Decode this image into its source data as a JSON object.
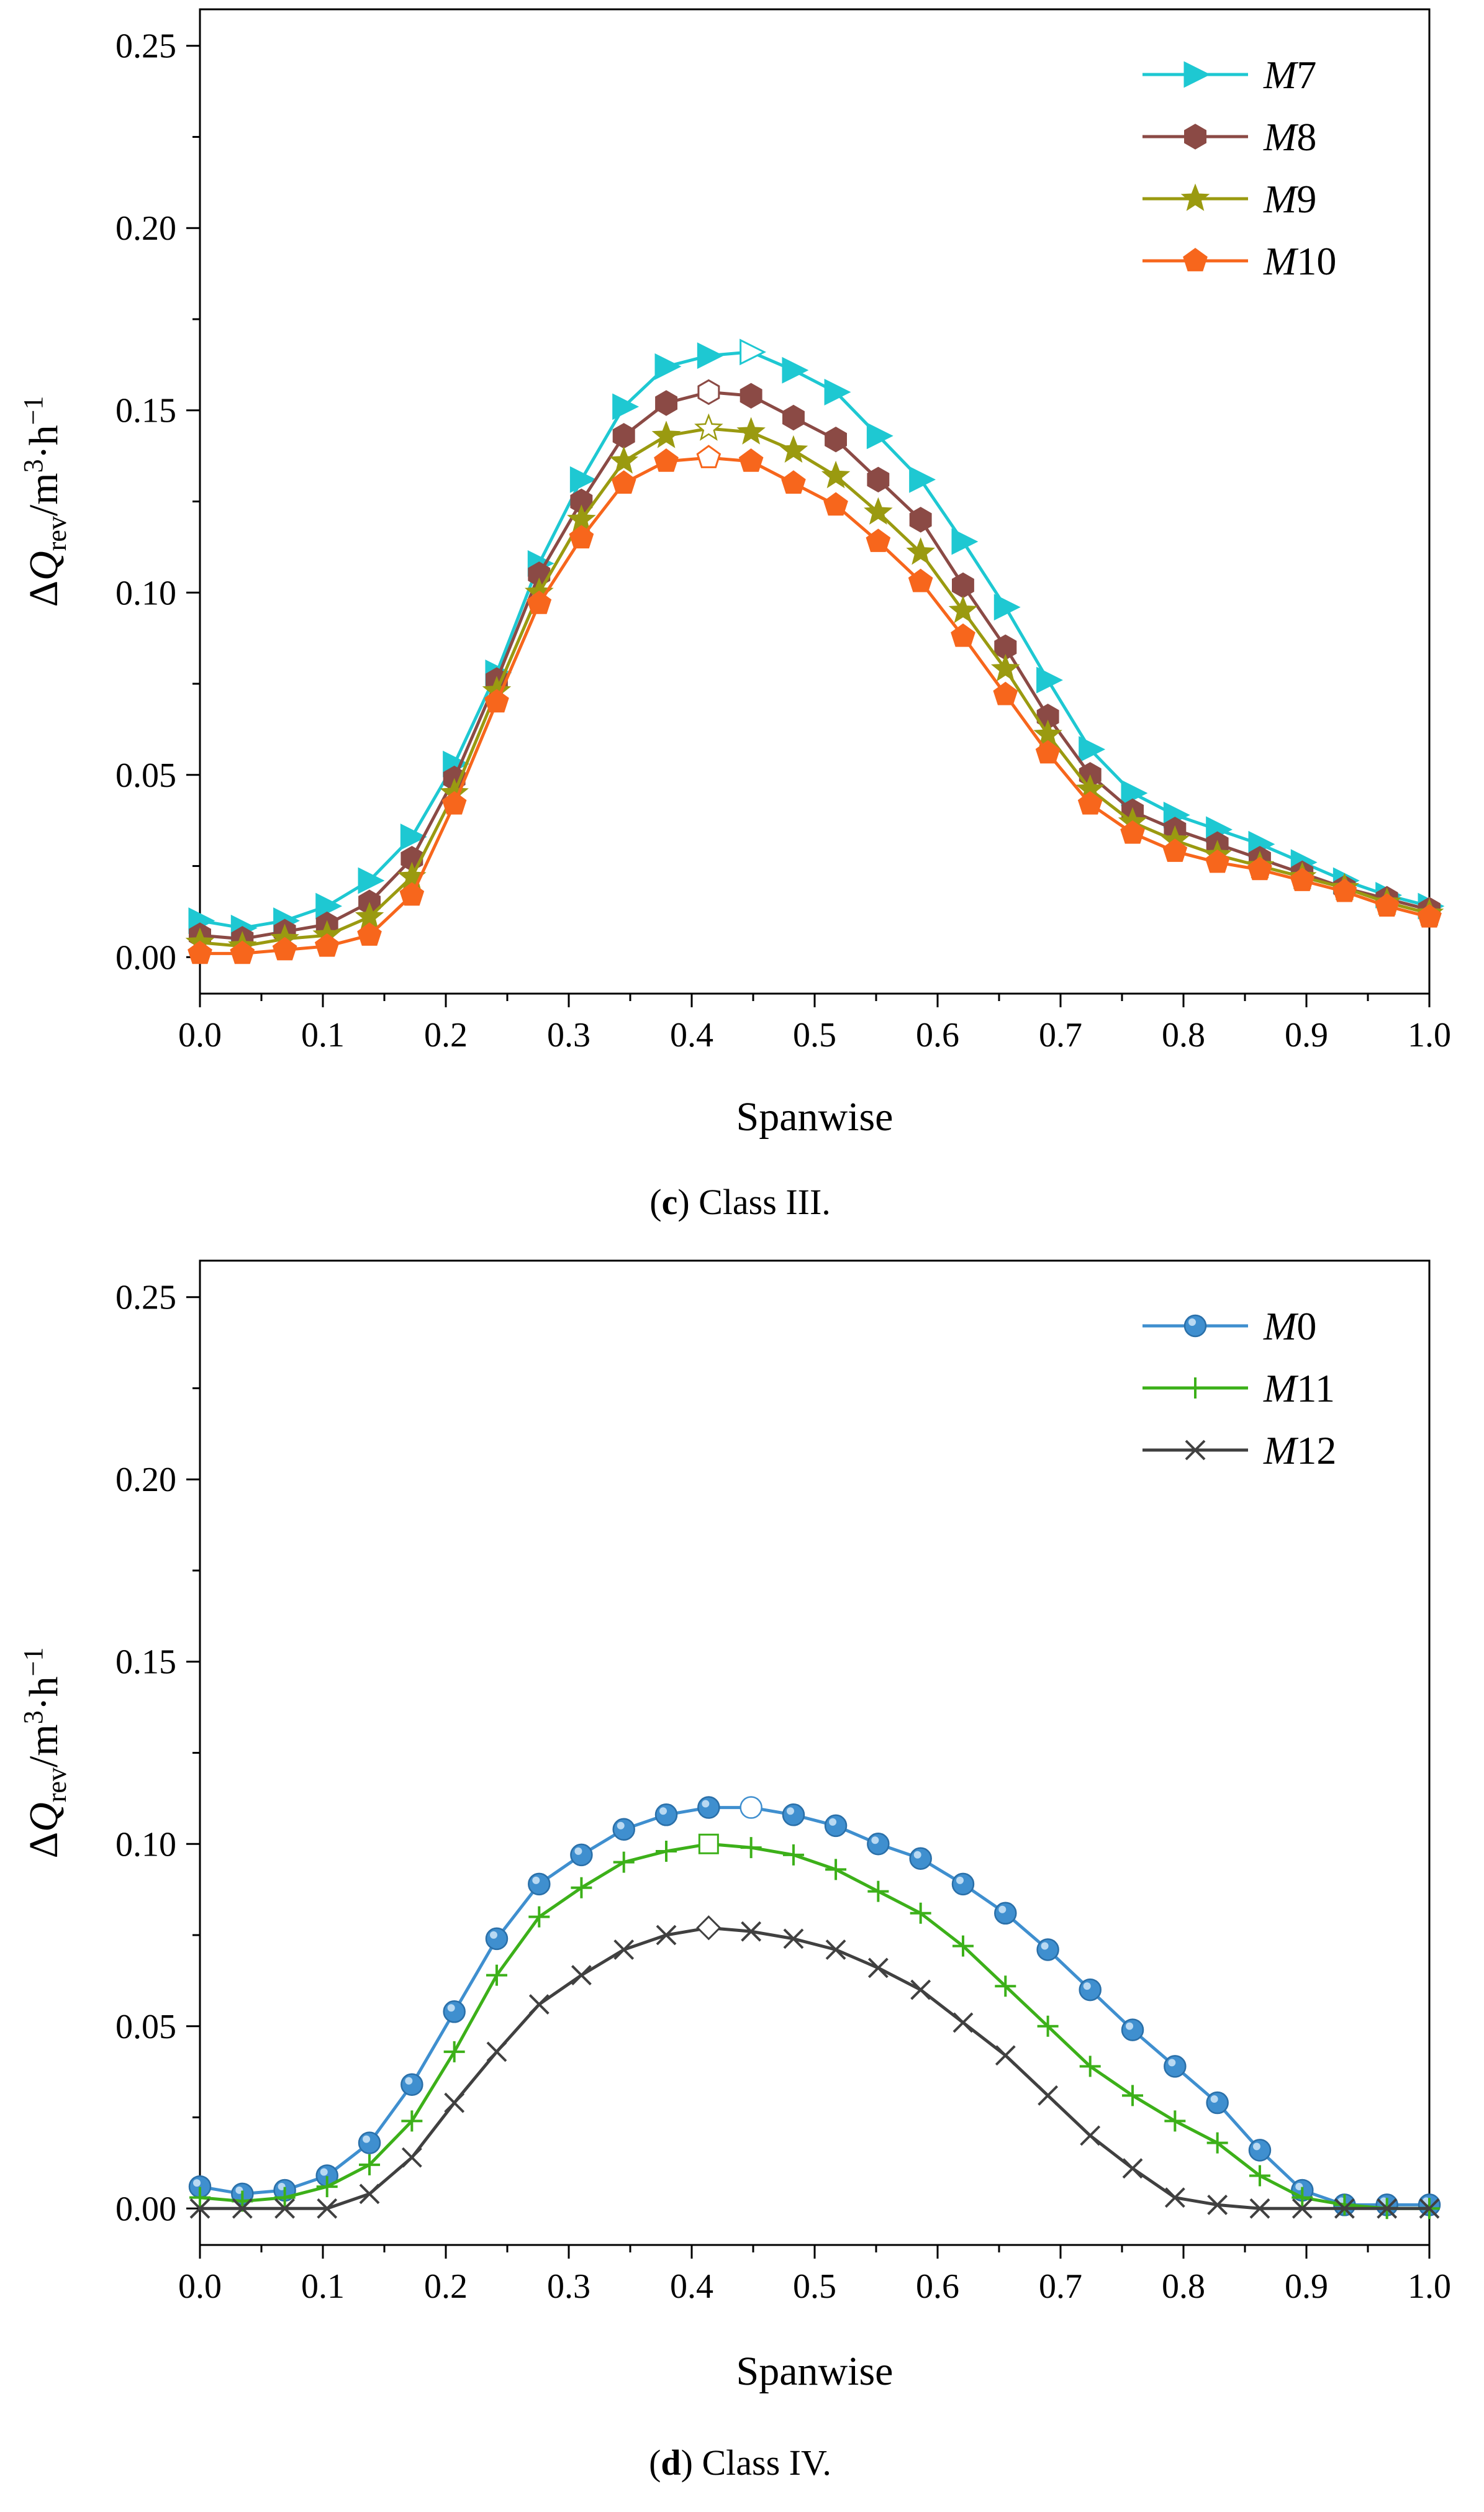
{
  "chart_data": [
    {
      "type": "line",
      "panel": "c",
      "caption": {
        "letter": "c",
        "text": " Class III."
      },
      "xlabel": "Spanwise",
      "ylabel": {
        "main": "ΔQ",
        "sub": "rev",
        "unit": "/m",
        "sup1": "3",
        "mid": "·h",
        "sup2": "−1"
      },
      "xlim": [
        0.0,
        1.0
      ],
      "ylim": [
        -0.01,
        0.26
      ],
      "xticks": [
        "0.0",
        "0.1",
        "0.2",
        "0.3",
        "0.4",
        "0.5",
        "0.6",
        "0.7",
        "0.8",
        "0.9",
        "1.0"
      ],
      "yticks": [
        "0.00",
        "0.05",
        "0.10",
        "0.15",
        "0.20",
        "0.25"
      ],
      "legend_position": "top-right",
      "x": [
        0.0,
        0.0345,
        0.069,
        0.1034,
        0.1379,
        0.1724,
        0.2069,
        0.2414,
        0.2759,
        0.3103,
        0.3448,
        0.3793,
        0.4138,
        0.4483,
        0.4828,
        0.5172,
        0.5517,
        0.5862,
        0.6207,
        0.6552,
        0.6897,
        0.7241,
        0.7586,
        0.7931,
        0.8276,
        0.8621,
        0.8966,
        0.931,
        0.9655,
        1.0
      ],
      "series": [
        {
          "name": "M7",
          "prefix": "M",
          "num": "7",
          "color": "#1ec8d2",
          "marker": "triangle-right",
          "peak_index": 13,
          "values": [
            0.01,
            0.008,
            0.01,
            0.014,
            0.021,
            0.033,
            0.053,
            0.078,
            0.108,
            0.131,
            0.151,
            0.162,
            0.165,
            0.166,
            0.161,
            0.155,
            0.143,
            0.131,
            0.114,
            0.096,
            0.076,
            0.057,
            0.045,
            0.039,
            0.035,
            0.031,
            0.026,
            0.021,
            0.017,
            0.014
          ]
        },
        {
          "name": "M8",
          "prefix": "M",
          "num": "8",
          "color": "#8b4a45",
          "marker": "hexagon",
          "peak_index": 12,
          "values": [
            0.006,
            0.005,
            0.007,
            0.009,
            0.015,
            0.027,
            0.049,
            0.076,
            0.105,
            0.125,
            0.143,
            0.152,
            0.155,
            0.154,
            0.148,
            0.142,
            0.131,
            0.12,
            0.102,
            0.085,
            0.066,
            0.05,
            0.04,
            0.035,
            0.031,
            0.027,
            0.023,
            0.019,
            0.016,
            0.013
          ]
        },
        {
          "name": "M9",
          "prefix": "M",
          "num": "9",
          "color": "#9a9a10",
          "marker": "star",
          "peak_index": 12,
          "values": [
            0.004,
            0.003,
            0.005,
            0.006,
            0.011,
            0.022,
            0.045,
            0.073,
            0.1,
            0.12,
            0.136,
            0.143,
            0.145,
            0.144,
            0.139,
            0.132,
            0.122,
            0.111,
            0.095,
            0.079,
            0.061,
            0.046,
            0.037,
            0.032,
            0.028,
            0.025,
            0.022,
            0.019,
            0.015,
            0.012
          ]
        },
        {
          "name": "M10",
          "prefix": "M",
          "num": "10",
          "color": "#f7661c",
          "marker": "pentagon",
          "peak_index": 12,
          "values": [
            0.001,
            0.001,
            0.002,
            0.003,
            0.006,
            0.017,
            0.042,
            0.07,
            0.097,
            0.115,
            0.13,
            0.136,
            0.137,
            0.136,
            0.13,
            0.124,
            0.114,
            0.103,
            0.088,
            0.072,
            0.056,
            0.042,
            0.034,
            0.029,
            0.026,
            0.024,
            0.021,
            0.018,
            0.014,
            0.011
          ]
        }
      ]
    },
    {
      "type": "line",
      "panel": "d",
      "caption": {
        "letter": "d",
        "text": " Class IV."
      },
      "xlabel": "Spanwise",
      "ylabel": {
        "main": "ΔQ",
        "sub": "rev",
        "unit": "/m",
        "sup1": "3",
        "mid": "·h",
        "sup2": "−1"
      },
      "xlim": [
        0.0,
        1.0
      ],
      "ylim": [
        -0.01,
        0.26
      ],
      "xticks": [
        "0.0",
        "0.1",
        "0.2",
        "0.3",
        "0.4",
        "0.5",
        "0.6",
        "0.7",
        "0.8",
        "0.9",
        "1.0"
      ],
      "yticks": [
        "0.00",
        "0.05",
        "0.10",
        "0.15",
        "0.20",
        "0.25"
      ],
      "legend_position": "top-right",
      "x": [
        0.0,
        0.0345,
        0.069,
        0.1034,
        0.1379,
        0.1724,
        0.2069,
        0.2414,
        0.2759,
        0.3103,
        0.3448,
        0.3793,
        0.4138,
        0.4483,
        0.4828,
        0.5172,
        0.5517,
        0.5862,
        0.6207,
        0.6552,
        0.6897,
        0.7241,
        0.7586,
        0.7931,
        0.8276,
        0.8621,
        0.8966,
        0.931,
        0.9655,
        1.0
      ],
      "series": [
        {
          "name": "M0",
          "prefix": "M",
          "num": "0",
          "color": "#3f8fcf",
          "marker": "circle",
          "peak_index": 13,
          "values": [
            0.006,
            0.004,
            0.005,
            0.009,
            0.018,
            0.034,
            0.054,
            0.074,
            0.089,
            0.097,
            0.104,
            0.108,
            0.11,
            0.11,
            0.108,
            0.105,
            0.1,
            0.096,
            0.089,
            0.081,
            0.071,
            0.06,
            0.049,
            0.039,
            0.029,
            0.016,
            0.005,
            0.001,
            0.001,
            0.001
          ]
        },
        {
          "name": "M11",
          "prefix": "M",
          "num": "11",
          "color": "#3cb019",
          "marker": "plus",
          "peak_index": 12,
          "values": [
            0.003,
            0.002,
            0.003,
            0.006,
            0.012,
            0.024,
            0.043,
            0.064,
            0.08,
            0.088,
            0.095,
            0.098,
            0.1,
            0.099,
            0.097,
            0.093,
            0.087,
            0.081,
            0.072,
            0.061,
            0.05,
            0.039,
            0.031,
            0.024,
            0.018,
            0.009,
            0.003,
            0.001,
            0.0,
            0.0
          ]
        },
        {
          "name": "M12",
          "prefix": "M",
          "num": "12",
          "color": "#404040",
          "marker": "x",
          "peak_index": 12,
          "values": [
            0.0,
            0.0,
            0.0,
            0.0,
            0.004,
            0.014,
            0.029,
            0.043,
            0.056,
            0.064,
            0.071,
            0.075,
            0.077,
            0.076,
            0.074,
            0.071,
            0.066,
            0.06,
            0.051,
            0.042,
            0.031,
            0.02,
            0.011,
            0.003,
            0.001,
            0.0,
            0.0,
            0.0,
            0.0,
            0.0
          ]
        }
      ]
    }
  ]
}
